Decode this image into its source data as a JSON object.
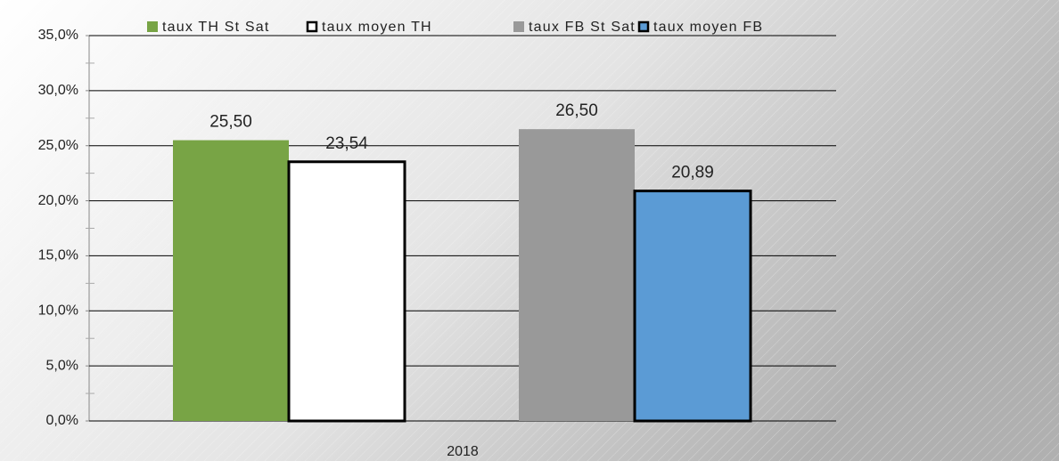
{
  "chart_data": {
    "type": "bar",
    "categories": [
      "2018"
    ],
    "series": [
      {
        "name": "taux TH St Sat",
        "color": "#78a445",
        "values": [
          25.5
        ],
        "value_labels": [
          "25,50"
        ]
      },
      {
        "name": "taux moyen TH",
        "color": "#ffffff",
        "edgecolor": "#000000",
        "values": [
          23.54
        ],
        "value_labels": [
          "23,54"
        ]
      },
      {
        "name": "taux FB St Sat",
        "color": "#999999",
        "values": [
          26.5
        ],
        "value_labels": [
          "26,50"
        ]
      },
      {
        "name": "taux moyen FB",
        "color": "#5b9bd5",
        "edgecolor": "#000000",
        "values": [
          20.89
        ],
        "value_labels": [
          "20,89"
        ]
      }
    ],
    "ylim": [
      0,
      35
    ],
    "yticks": [
      {
        "value": 0,
        "label": "0,0%"
      },
      {
        "value": 5,
        "label": "5,0%"
      },
      {
        "value": 10,
        "label": "10,0%"
      },
      {
        "value": 15,
        "label": "15,0%"
      },
      {
        "value": 20,
        "label": "20,0%"
      },
      {
        "value": 25,
        "label": "25,0%"
      },
      {
        "value": 30,
        "label": "30,0%"
      },
      {
        "value": 35,
        "label": "35,0%"
      }
    ],
    "grid": true,
    "legend": "top"
  }
}
